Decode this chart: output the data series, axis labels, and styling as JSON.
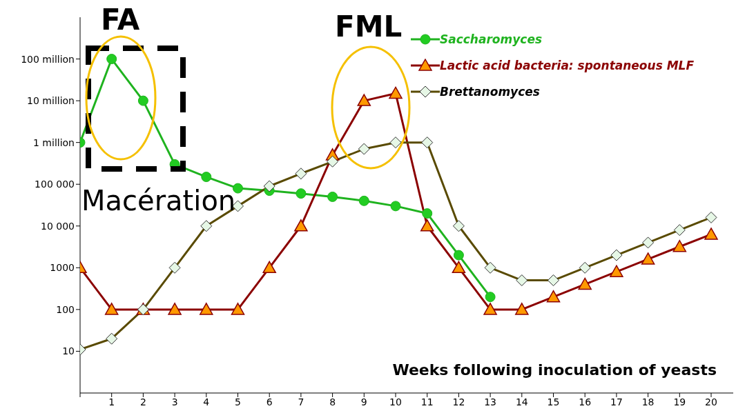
{
  "chart_data": {
    "type": "line",
    "xlabel": "Weeks following inoculation of yeasts",
    "annotations": [
      "FA",
      "FML",
      "Macération"
    ],
    "x": [
      0,
      1,
      2,
      3,
      4,
      5,
      6,
      7,
      8,
      9,
      10,
      11,
      12,
      13,
      14,
      15,
      16,
      17,
      18,
      19,
      20
    ],
    "xlim": [
      0,
      20.7
    ],
    "xticks": [
      {
        "value": 0,
        "label": null
      },
      1,
      2,
      3,
      4,
      5,
      6,
      7,
      8,
      9,
      10,
      11,
      12,
      13,
      14,
      15,
      16,
      17,
      18,
      19,
      20
    ],
    "ylim": [
      1,
      1000000000
    ],
    "log": true,
    "yticks": [
      10,
      100,
      1000,
      {
        "value": 10000,
        "label": "10 000"
      },
      {
        "value": 100000,
        "label": "100 000"
      },
      {
        "value": 1000000,
        "label": "1 million"
      },
      {
        "value": 10000000,
        "label": "10 million"
      },
      {
        "value": 100000000,
        "label": "100 million"
      }
    ],
    "legend": "top right",
    "line_style": "solid",
    "series": [
      {
        "name": "Saccharomyces",
        "color": "#1fb31f",
        "marker": "circle",
        "values": [
          1000000,
          100000000,
          10000000,
          300000,
          150000,
          80000,
          70000,
          60000,
          50000,
          40000,
          30000,
          20000,
          2000,
          200,
          null,
          null,
          null,
          null,
          null,
          null,
          null
        ]
      },
      {
        "name": "Lactic acid bacteria: spontaneous MLF",
        "color": "#8b0000",
        "marker": "triangle",
        "values": [
          1000,
          100,
          100,
          100,
          100,
          100,
          1000,
          10000,
          500000,
          10000000,
          15000000,
          10000,
          1000,
          100,
          100,
          200,
          400,
          800,
          1600,
          3200,
          6300
        ]
      },
      {
        "name": "Brettanomyces",
        "color": "#594a00",
        "marker": "diamond",
        "values": [
          11,
          20,
          100,
          1000,
          10000,
          30000,
          90000,
          180000,
          350000,
          700000,
          1000000,
          1000000,
          10000,
          1000,
          500,
          500,
          1000,
          2000,
          4000,
          8000,
          16000
        ]
      }
    ]
  }
}
